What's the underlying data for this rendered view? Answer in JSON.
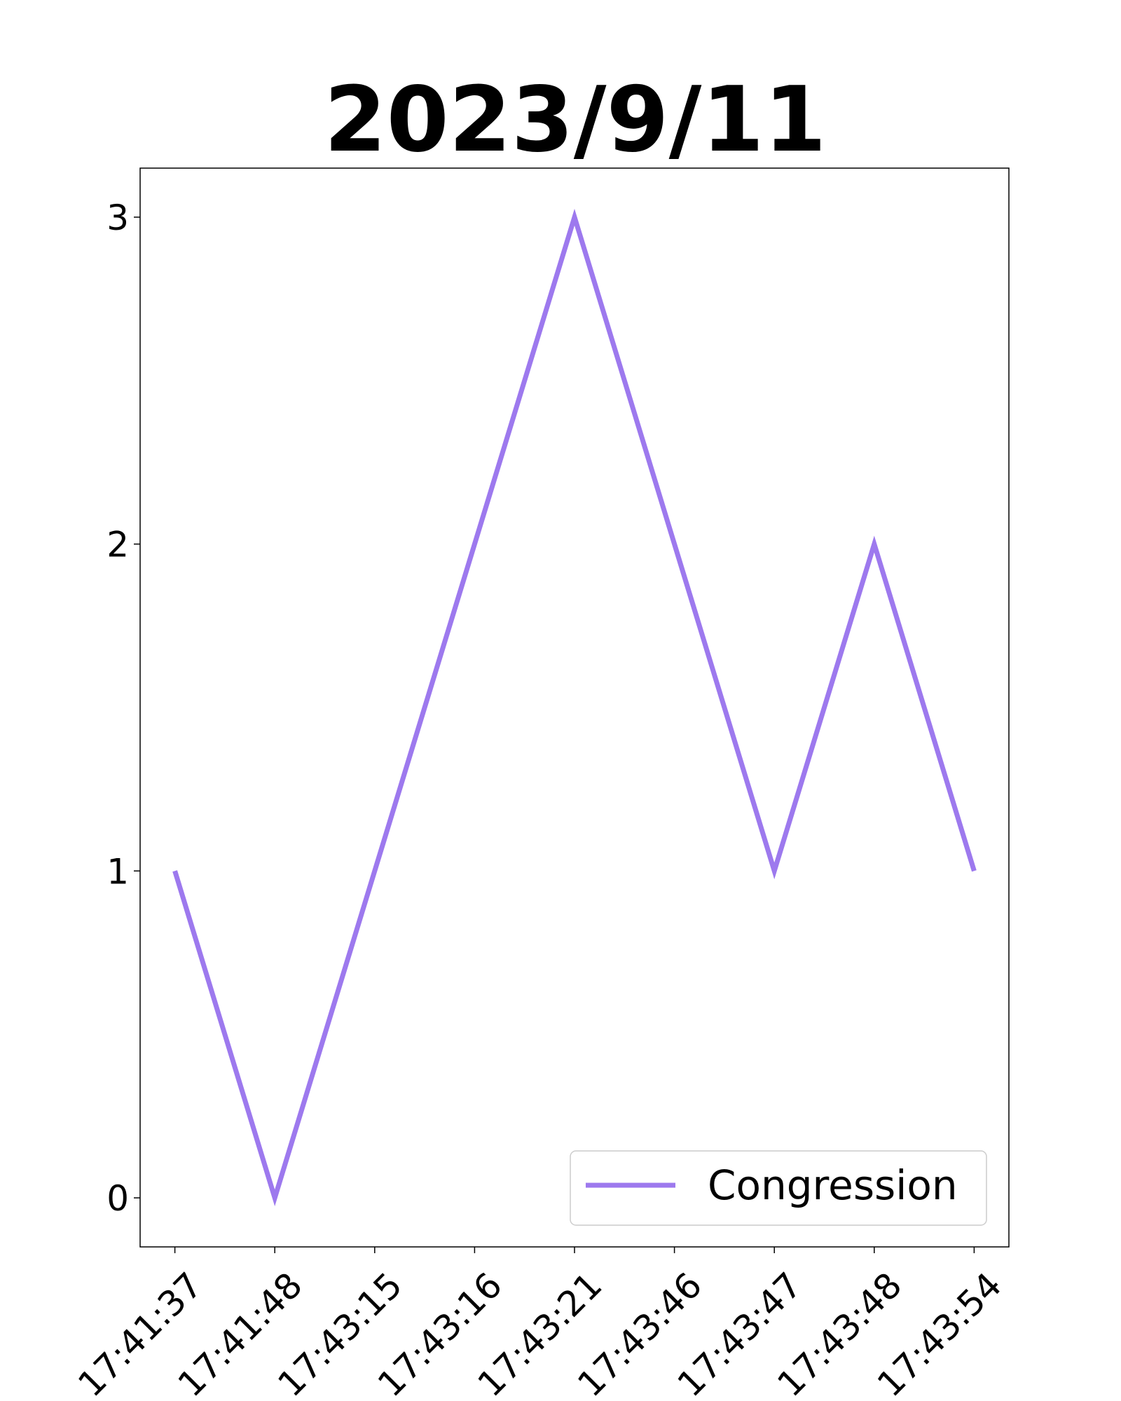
{
  "chart_data": {
    "type": "line",
    "title": "2023/9/11",
    "xlabel": "",
    "ylabel": "",
    "categories": [
      "17:41:37",
      "17:41:48",
      "17:43:15",
      "17:43:16",
      "17:43:21",
      "17:43:46",
      "17:43:47",
      "17:43:48",
      "17:43:54"
    ],
    "series": [
      {
        "name": "Congression",
        "values": [
          1,
          0,
          1,
          2,
          3,
          2,
          1,
          2,
          1
        ],
        "color": "#9d79ee"
      }
    ],
    "ylim": [
      -0.15,
      3.15
    ],
    "yticks": [
      0,
      1,
      2,
      3
    ],
    "grid": false,
    "legend": "lower-right"
  }
}
